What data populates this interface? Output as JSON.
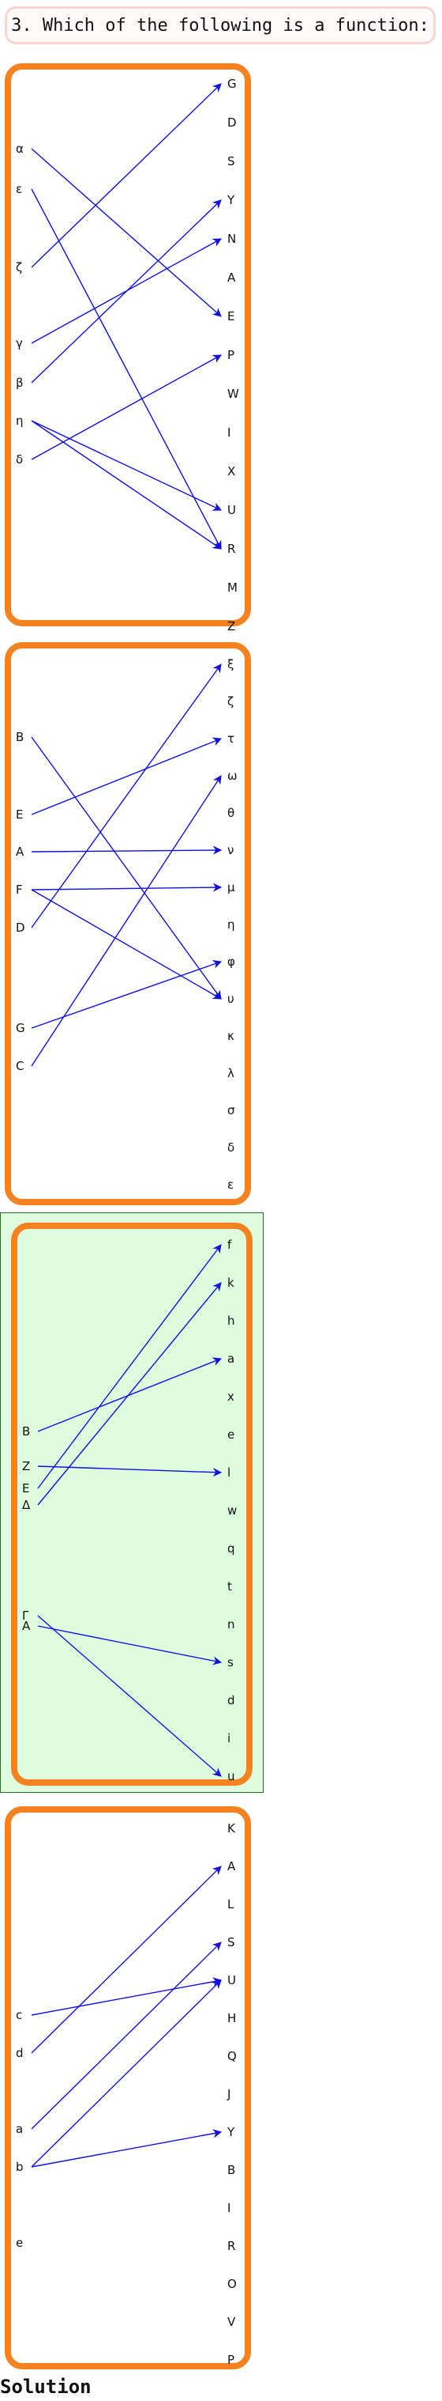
{
  "question": "3. Which of the following is a function:",
  "solution_label": "Solution",
  "options": [
    {
      "id": "option-1",
      "domain": [
        "α",
        "ε",
        "ζ",
        "γ",
        "β",
        "η",
        "δ"
      ],
      "codomain": [
        "G",
        "D",
        "S",
        "Y",
        "N",
        "A",
        "E",
        "P",
        "W",
        "I",
        "X",
        "U",
        "R",
        "M",
        "Z"
      ],
      "mappings": [
        [
          "α",
          "E"
        ],
        [
          "ε",
          "R"
        ],
        [
          "ζ",
          "G"
        ],
        [
          "γ",
          "N"
        ],
        [
          "β",
          "Y"
        ],
        [
          "η",
          "U"
        ],
        [
          "η",
          "R"
        ],
        [
          "δ",
          "P"
        ]
      ]
    },
    {
      "id": "option-2",
      "domain": [
        "B",
        "E",
        "A",
        "F",
        "D",
        "G",
        "C"
      ],
      "codomain": [
        "ξ",
        "ζ",
        "τ",
        "ω",
        "θ",
        "ν",
        "μ",
        "η",
        "φ",
        "υ",
        "κ",
        "λ",
        "σ",
        "δ",
        "ε"
      ],
      "mappings": [
        [
          "B",
          "υ"
        ],
        [
          "E",
          "τ"
        ],
        [
          "A",
          "ν"
        ],
        [
          "F",
          "μ"
        ],
        [
          "F",
          "υ"
        ],
        [
          "D",
          "ξ"
        ],
        [
          "G",
          "φ"
        ],
        [
          "C",
          "ω"
        ]
      ]
    },
    {
      "id": "option-3",
      "correct": true,
      "domain": [
        "B",
        "Z",
        "E",
        "Δ",
        "Γ",
        "A"
      ],
      "codomain": [
        "f",
        "k",
        "h",
        "a",
        "x",
        "e",
        "l",
        "w",
        "q",
        "t",
        "n",
        "s",
        "d",
        "i",
        "u"
      ],
      "mappings": [
        [
          "B",
          "a"
        ],
        [
          "Z",
          "l"
        ],
        [
          "E",
          "f"
        ],
        [
          "Δ",
          "k"
        ],
        [
          "Γ",
          "u"
        ],
        [
          "A",
          "s"
        ]
      ]
    },
    {
      "id": "option-4",
      "domain": [
        "c",
        "d",
        "a",
        "b",
        "e"
      ],
      "codomain": [
        "K",
        "A",
        "L",
        "S",
        "U",
        "H",
        "Q",
        "J",
        "Y",
        "B",
        "I",
        "R",
        "O",
        "V",
        "P"
      ],
      "mappings": [
        [
          "c",
          "U"
        ],
        [
          "d",
          "A"
        ],
        [
          "a",
          "S"
        ],
        [
          "b",
          "U"
        ],
        [
          "b",
          "Y"
        ]
      ]
    }
  ],
  "colors": {
    "arrow": "#1010e0",
    "border": "#f58220",
    "correct_bg": "#ddfddd"
  }
}
